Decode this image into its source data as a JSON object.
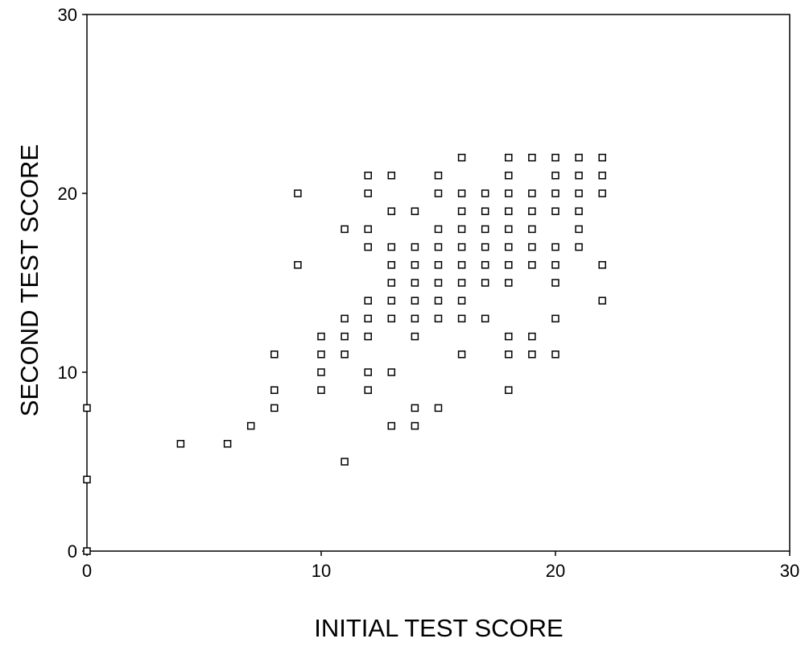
{
  "chart_data": {
    "type": "scatter",
    "x_label": "INITIAL TEST SCORE",
    "y_label": "SECOND TEST SCORE",
    "x": [
      0,
      0,
      0,
      4,
      6,
      7,
      8,
      8,
      8,
      9,
      9,
      10,
      10,
      10,
      10,
      11,
      11,
      11,
      11,
      11,
      12,
      12,
      12,
      12,
      12,
      12,
      12,
      12,
      12,
      13,
      13,
      13,
      13,
      13,
      13,
      13,
      13,
      13,
      14,
      14,
      14,
      14,
      14,
      14,
      14,
      14,
      14,
      15,
      15,
      15,
      15,
      15,
      15,
      15,
      15,
      15,
      16,
      16,
      16,
      16,
      16,
      16,
      16,
      16,
      16,
      16,
      17,
      17,
      17,
      17,
      17,
      17,
      17,
      18,
      18,
      18,
      18,
      18,
      18,
      18,
      18,
      18,
      18,
      18,
      19,
      19,
      19,
      19,
      19,
      19,
      19,
      19,
      20,
      20,
      20,
      20,
      20,
      20,
      20,
      20,
      20,
      21,
      21,
      21,
      21,
      21,
      21,
      22,
      22,
      22,
      22,
      22
    ],
    "values": [
      8,
      4,
      0,
      6,
      6,
      7,
      11,
      9,
      8,
      20,
      16,
      12,
      11,
      10,
      9,
      18,
      13,
      12,
      11,
      5,
      21,
      20,
      18,
      17,
      14,
      13,
      12,
      10,
      9,
      21,
      19,
      17,
      16,
      15,
      14,
      13,
      10,
      7,
      19,
      17,
      16,
      15,
      14,
      13,
      12,
      8,
      7,
      21,
      20,
      18,
      17,
      16,
      15,
      14,
      13,
      8,
      22,
      20,
      19,
      18,
      17,
      16,
      15,
      14,
      13,
      11,
      20,
      19,
      18,
      17,
      16,
      15,
      13,
      22,
      21,
      20,
      19,
      18,
      17,
      16,
      15,
      12,
      11,
      9,
      22,
      20,
      19,
      18,
      17,
      16,
      12,
      11,
      22,
      21,
      20,
      19,
      17,
      16,
      15,
      13,
      11,
      22,
      21,
      20,
      19,
      18,
      17,
      22,
      21,
      20,
      16,
      14
    ],
    "color": "#000000",
    "xlim": [
      0,
      30
    ],
    "ylim": [
      0,
      30
    ],
    "xticks": [
      0,
      10,
      20,
      30
    ],
    "yticks": [
      0,
      10,
      20,
      30
    ]
  }
}
